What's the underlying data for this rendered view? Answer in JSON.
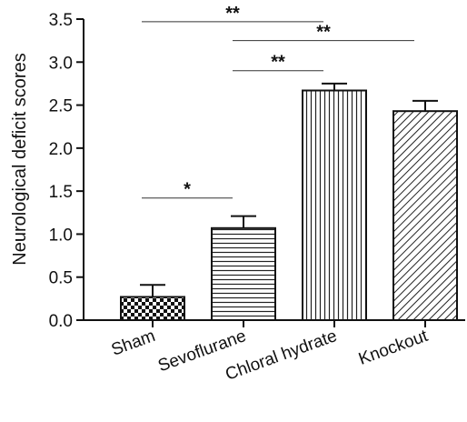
{
  "chart_data": {
    "type": "bar",
    "ylabel": "Neurological deficit scores",
    "xlabel": "",
    "title": "",
    "ylim": [
      0,
      3.5
    ],
    "yticks": [
      0.0,
      0.5,
      1.0,
      1.5,
      2.0,
      2.5,
      3.0,
      3.5
    ],
    "ytick_labels": [
      "0.0",
      "0.5",
      "1.0",
      "1.5",
      "2.0",
      "2.5",
      "3.0",
      "3.5"
    ],
    "categories": [
      "Sham",
      "Sevoflurane",
      "Chloral hydrate",
      "Knockout"
    ],
    "values": [
      0.27,
      1.07,
      2.67,
      2.43
    ],
    "errors": [
      0.14,
      0.14,
      0.08,
      0.12
    ],
    "patterns": [
      "checker",
      "horizontal-lines",
      "vertical-lines",
      "diagonal-lines"
    ],
    "grid": false,
    "significance": [
      {
        "from": 0,
        "to": 2,
        "y": 3.47,
        "label": "**"
      },
      {
        "from": 1,
        "to": 3,
        "y": 3.25,
        "label": "**"
      },
      {
        "from": 1,
        "to": 2,
        "y": 2.9,
        "label": "**"
      },
      {
        "from": 0,
        "to": 1,
        "y": 1.42,
        "label": "*"
      }
    ],
    "colors": {
      "bar_stroke": "#111111",
      "fill": "#ffffff"
    }
  }
}
